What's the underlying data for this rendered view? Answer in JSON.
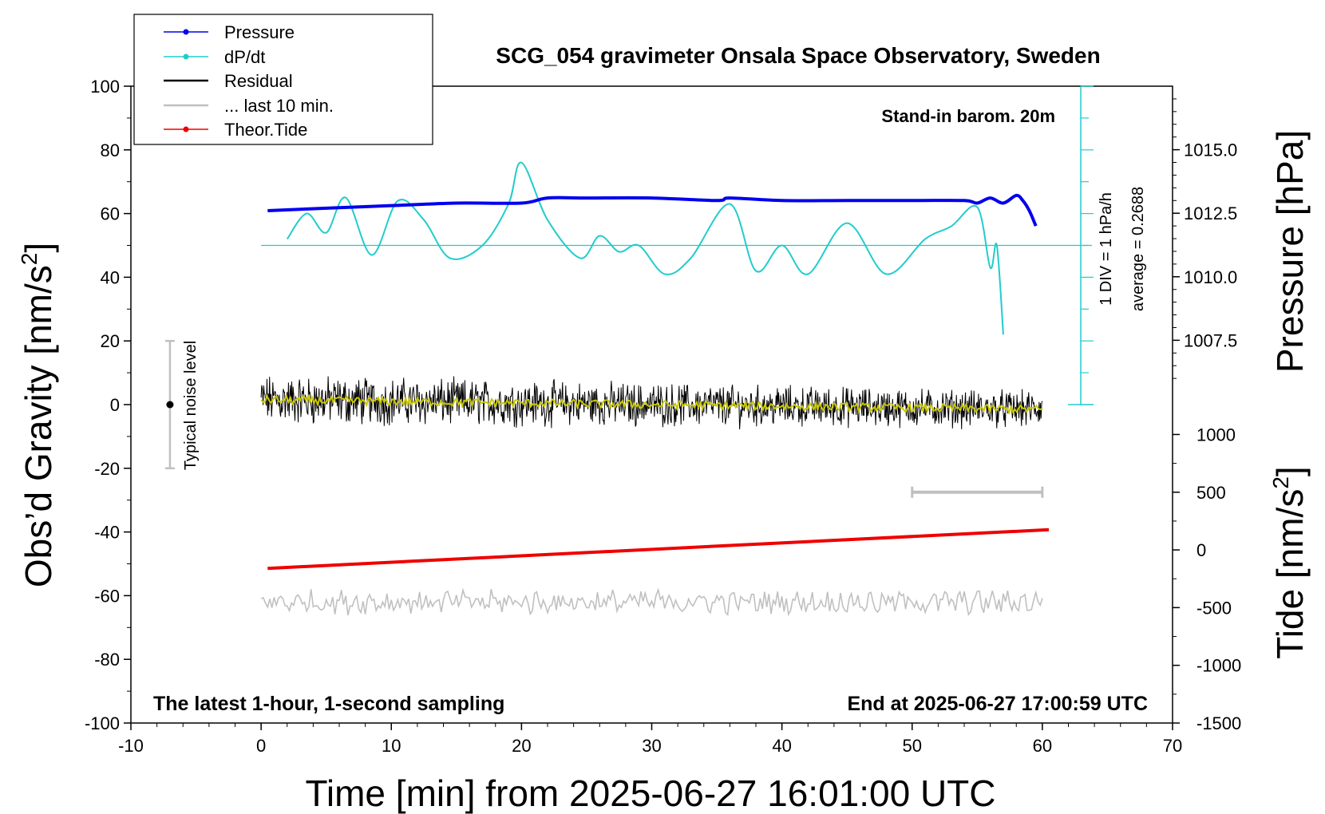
{
  "chart_data": {
    "type": "line",
    "title": "SCG_054 gravimeter Onsala Space Observatory, Sweden",
    "xlabel": "Time [min] from 2025-06-27 16:01:00 UTC",
    "ylabel_left_prefix": "Obs’d Gravity [nm/s",
    "ylabel_left_sup": "2",
    "ylabel_left_suffix": "]",
    "ylabel_pressure": "Pressure [hPa]",
    "ylabel_tide_prefix": "Tide [nm/s",
    "ylabel_tide_sup": "2",
    "ylabel_tide_suffix": "]",
    "xlim": [
      -10,
      70
    ],
    "ylim": [
      -100,
      100
    ],
    "pressure_ylim": [
      1005.0,
      1017.5
    ],
    "tide_ylim": [
      -1500,
      1100
    ],
    "x_ticks": [
      "-10",
      "0",
      "10",
      "20",
      "30",
      "40",
      "50",
      "60",
      "70"
    ],
    "y_ticks": [
      "100",
      "80",
      "60",
      "40",
      "20",
      "0",
      "-20",
      "-40",
      "-60",
      "-80",
      "-100"
    ],
    "pressure_ticks": [
      "1015.0",
      "1012.5",
      "1010.0",
      "1007.5"
    ],
    "tide_ticks": [
      "1000",
      "500",
      "0",
      "-500",
      "-1000",
      "-1500"
    ],
    "annotations": {
      "barometer": "Stand-in barom. 20m",
      "div": "1 DIV = 1 hPa/h",
      "average": "average = 0.2688",
      "noise": "Typical noise level",
      "latest": "The latest 1-hour, 1-second sampling",
      "end": "End at 2025-06-27 17:00:59 UTC"
    },
    "legend": [
      "Pressure",
      "dP/dt",
      "Residual",
      "... last 10 min.",
      "Theor.Tide"
    ],
    "colors": {
      "pressure": "#0000ee",
      "dpdt": "#22cccc",
      "residual": "#000000",
      "smooth": "#c8c800",
      "last10": "#c0c0c0",
      "tide": "#ee0000"
    },
    "series": {
      "pressure_hpa": {
        "t": [
          0.5,
          5,
          10,
          15,
          20,
          22,
          25,
          30,
          35,
          36,
          40,
          45,
          50,
          54,
          55,
          56,
          57,
          58,
          58.5,
          59,
          59.5
        ],
        "v": [
          1012.6,
          1012.7,
          1012.8,
          1012.9,
          1012.9,
          1013.1,
          1013.1,
          1013.1,
          1013.0,
          1013.1,
          1013.0,
          1013.0,
          1013.0,
          1013.0,
          1012.9,
          1013.1,
          1012.9,
          1013.2,
          1013.0,
          1012.6,
          1012.0
        ]
      },
      "dpdt_gravity_units": {
        "t": [
          2,
          3.5,
          5,
          6.5,
          8.5,
          10.5,
          12.5,
          14.5,
          17,
          19,
          20,
          22,
          24.5,
          26,
          27.5,
          29,
          31,
          33,
          36,
          38,
          40,
          42,
          45,
          48,
          51,
          53,
          55,
          56,
          56.5,
          57
        ],
        "v": [
          52,
          60,
          54,
          65,
          47,
          64,
          58,
          46,
          50,
          63,
          76,
          58,
          46,
          53,
          48,
          50,
          41,
          46,
          63,
          42,
          50,
          41,
          57,
          41,
          52,
          56,
          62,
          43,
          50,
          22
        ]
      },
      "dpdt_zero_line": 50,
      "tide_start_end": [
        [
          0.5,
          -160
        ],
        [
          60.5,
          175
        ]
      ],
      "residual": {
        "t_range": [
          0,
          60
        ],
        "amplitude": 5.5,
        "trend_start": 1.5,
        "trend_end": -1.5
      },
      "last10_bar": {
        "x": [
          50,
          60
        ],
        "y_tide": 500
      },
      "noise_bar": {
        "x": -7,
        "y": [
          -20,
          20
        ]
      }
    }
  }
}
